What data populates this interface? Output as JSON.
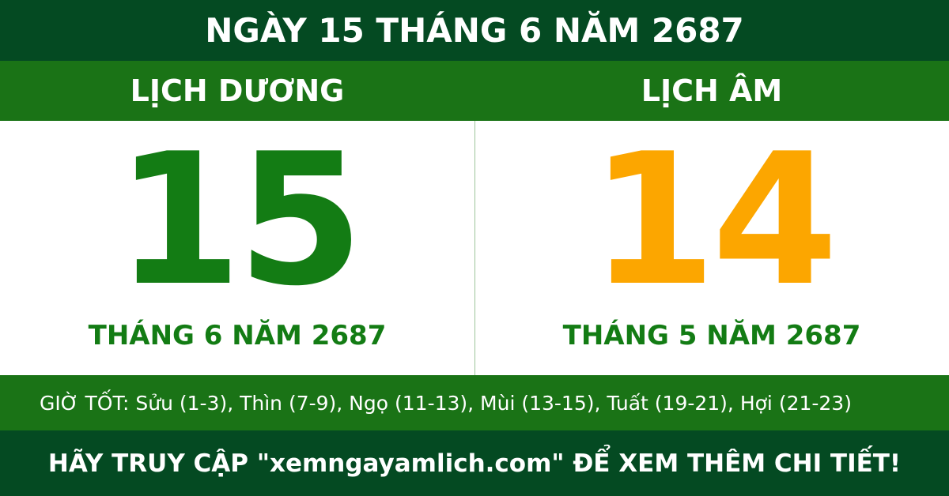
{
  "header": {
    "title": "NGÀY 15 THÁNG 6 NĂM 2687"
  },
  "solar": {
    "heading": "LỊCH DƯƠNG",
    "day": "15",
    "month_year": "THÁNG 6 NĂM 2687"
  },
  "lunar": {
    "heading": "LỊCH ÂM",
    "day": "14",
    "month_year": "THÁNG 5 NĂM 2687"
  },
  "good_hours": "GIỜ TỐT: Sửu (1-3), Thìn (7-9), Ngọ (11-13), Mùi (13-15), Tuất (19-21), Hợi (21-23)",
  "footer": "HÃY TRUY CẬP \"xemngayamlich.com\" ĐỂ XEM THÊM CHI TIẾT!"
}
